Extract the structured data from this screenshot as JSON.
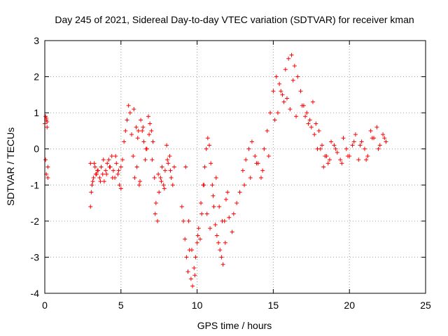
{
  "chart_data": {
    "type": "scatter",
    "title": "Day 245 of 2021, Sidereal Day-to-day VTEC variation (SDTVAR) for receiver kman",
    "xlabel": "GPS time / hours",
    "ylabel": "SDTVAR / TECUs",
    "xlim": [
      0,
      25
    ],
    "ylim": [
      -4,
      3
    ],
    "xticks": [
      "0",
      "5",
      "10",
      "15",
      "20",
      "25"
    ],
    "yticks": [
      "-4",
      "-3",
      "-2",
      "-1",
      "0",
      "1",
      "2",
      "3"
    ],
    "grid": true,
    "marker": "+",
    "color": "#ff0000",
    "series": [
      {
        "x": [
          0.0,
          0.05,
          0.1,
          0.15,
          0.2,
          0.1,
          0.05,
          0.15,
          0.2,
          0.1,
          3.0,
          3.1,
          3.2,
          3.3,
          3.4,
          3.5,
          3.6,
          3.7,
          3.8,
          3.9,
          4.0,
          4.1,
          4.2,
          4.3,
          4.4,
          4.5,
          4.6,
          4.7,
          4.8,
          4.9,
          5.0,
          3.05,
          3.25,
          3.45,
          3.65,
          3.85,
          4.05,
          4.25,
          4.45,
          4.65,
          4.85,
          3.0,
          3.15,
          3.35,
          5.0,
          5.1,
          5.2,
          5.3,
          5.4,
          5.5,
          5.6,
          5.7,
          5.8,
          5.9,
          6.0,
          6.1,
          6.2,
          6.3,
          6.4,
          6.5,
          6.6,
          6.7,
          6.8,
          6.9,
          7.0,
          7.1,
          7.2,
          7.3,
          7.4,
          7.5,
          7.6,
          7.7,
          7.8,
          7.9,
          8.0,
          8.1,
          8.2,
          8.3,
          8.4,
          8.5,
          6.05,
          6.25,
          6.45,
          6.65,
          6.85,
          7.05,
          7.25,
          7.45,
          7.65,
          7.85,
          8.05,
          8.25,
          5.85,
          6.15,
          9.0,
          9.1,
          9.2,
          9.3,
          9.4,
          9.5,
          9.6,
          9.7,
          9.8,
          9.9,
          10.0,
          10.1,
          10.2,
          10.3,
          10.4,
          10.5,
          10.6,
          10.7,
          10.8,
          10.9,
          11.0,
          11.1,
          11.2,
          11.3,
          11.4,
          11.5,
          11.6,
          11.7,
          11.8,
          11.9,
          12.0,
          9.25,
          9.45,
          9.65,
          9.85,
          10.05,
          10.25,
          10.45,
          10.65,
          10.85,
          11.05,
          11.25,
          11.45,
          11.65,
          11.85,
          12.1,
          12.3,
          12.4,
          12.6,
          12.8,
          13.0,
          13.2,
          13.4,
          13.6,
          13.8,
          14.0,
          14.2,
          14.4,
          14.6,
          14.8,
          15.0,
          15.2,
          15.4,
          15.6,
          15.8,
          16.0,
          16.2,
          16.4,
          16.6,
          13.1,
          13.5,
          13.9,
          14.3,
          14.7,
          15.1,
          15.5,
          15.9,
          16.3,
          16.8,
          17.0,
          17.2,
          17.4,
          17.6,
          17.8,
          18.0,
          18.2,
          18.4,
          18.6,
          18.8,
          19.0,
          19.2,
          19.4,
          19.6,
          19.8,
          20.0,
          20.2,
          20.4,
          20.6,
          20.8,
          21.0,
          21.2,
          21.4,
          21.6,
          21.8,
          22.0,
          22.2,
          22.4,
          17.1,
          17.5,
          17.9,
          18.3,
          18.7,
          19.1,
          19.5,
          19.9,
          20.3,
          20.7,
          21.1,
          21.5,
          21.9,
          22.3,
          15.3,
          15.7,
          16.1,
          16.5,
          16.9,
          17.3,
          17.7,
          18.1,
          18.5
        ],
        "y": [
          0.7,
          0.9,
          0.8,
          0.6,
          -0.5,
          -0.7,
          -0.3,
          0.75,
          -0.8,
          0.85,
          -1.6,
          -1.0,
          -0.8,
          -0.5,
          -0.7,
          -0.6,
          -0.8,
          -0.5,
          -0.7,
          -0.9,
          -0.6,
          -0.4,
          -0.3,
          -0.5,
          -0.2,
          -0.6,
          -0.8,
          -0.4,
          -0.7,
          -1.0,
          -0.5,
          -1.2,
          -0.4,
          -0.6,
          -0.9,
          -0.3,
          -0.7,
          -0.5,
          -0.8,
          -0.2,
          -0.6,
          -0.4,
          -0.9,
          -0.7,
          -1.1,
          -0.3,
          0.2,
          0.5,
          0.8,
          1.2,
          1.0,
          0.4,
          -0.2,
          -0.8,
          0.6,
          0.3,
          -1.0,
          0.8,
          0.5,
          0.2,
          -0.3,
          0.0,
          0.9,
          0.7,
          0.5,
          0.2,
          -0.8,
          -1.5,
          -2.0,
          -1.2,
          -0.8,
          -0.5,
          -1.0,
          -0.6,
          0.1,
          -0.4,
          -0.2,
          -0.8,
          -1.0,
          -0.5,
          -0.5,
          -0.9,
          0.6,
          0.0,
          0.4,
          -0.3,
          -1.8,
          -0.7,
          -0.9,
          -1.1,
          -0.3,
          -0.6,
          1.1,
          0.5,
          -1.6,
          -2.0,
          -2.5,
          -3.0,
          -3.4,
          -2.8,
          -3.6,
          -3.8,
          -3.3,
          -3.0,
          -2.6,
          -2.2,
          -2.5,
          -1.8,
          -1.0,
          -0.5,
          0.0,
          0.3,
          0.1,
          -0.4,
          -1.0,
          -1.6,
          -2.1,
          -2.4,
          -2.6,
          -2.8,
          -3.0,
          -3.2,
          -2.0,
          -1.4,
          -1.2,
          -0.5,
          -2.0,
          -2.8,
          -3.5,
          -2.4,
          -1.5,
          -1.0,
          -1.8,
          -2.2,
          -1.3,
          -0.8,
          -1.6,
          -2.0,
          -2.6,
          -1.9,
          -2.3,
          -1.8,
          -1.5,
          -1.2,
          -0.6,
          -0.3,
          0.0,
          0.2,
          -0.2,
          -0.4,
          -0.8,
          0.0,
          0.5,
          1.0,
          1.6,
          2.0,
          1.8,
          1.5,
          2.2,
          2.5,
          2.6,
          2.3,
          2.0,
          -1.0,
          -0.8,
          -0.4,
          -0.6,
          -0.2,
          0.8,
          1.6,
          1.4,
          1.9,
          1.6,
          1.2,
          1.0,
          0.8,
          1.3,
          0.7,
          0.5,
          0.1,
          -0.2,
          -0.4,
          0.2,
          0.1,
          -0.1,
          -0.3,
          0.3,
          0.0,
          -0.2,
          0.1,
          0.4,
          -0.3,
          0.2,
          0.0,
          -0.2,
          0.5,
          0.3,
          0.6,
          0.1,
          0.4,
          0.2,
          0.9,
          0.6,
          0.0,
          -0.5,
          -0.3,
          0.0,
          -0.4,
          -0.2,
          0.2,
          0.1,
          -0.3,
          0.3,
          0.0,
          0.3,
          1.0,
          1.3,
          1.1,
          0.9,
          1.2,
          0.7,
          0.4,
          0.0,
          -0.2
        ]
      }
    ]
  }
}
